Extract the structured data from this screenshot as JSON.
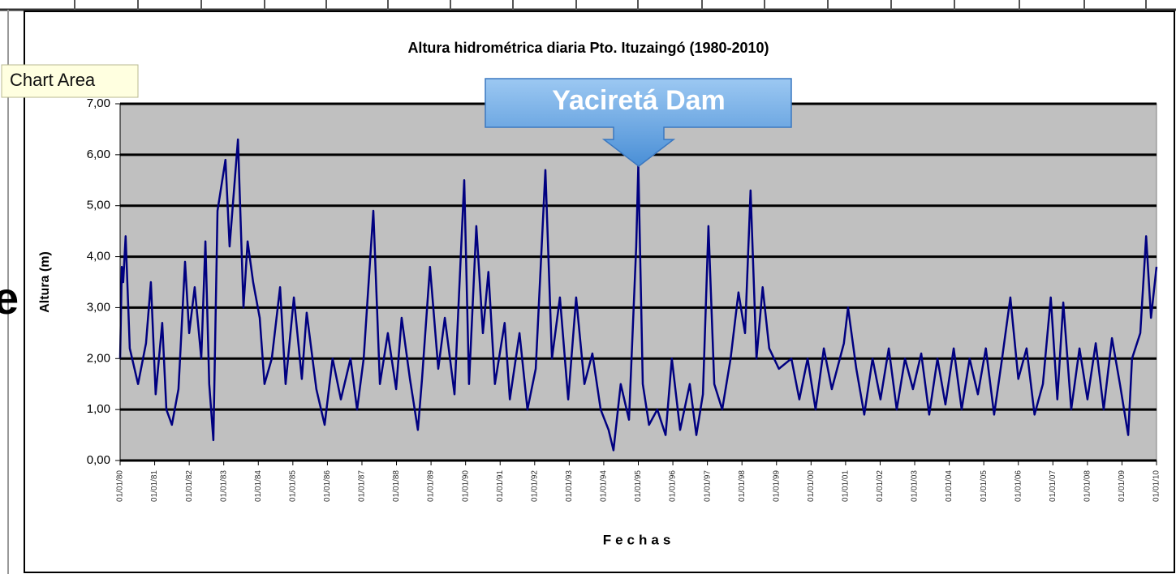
{
  "chart_data": {
    "type": "line",
    "title": "Altura hidrométrica diaria Pto. Ituzaingó (1980-2010)",
    "x_label": "Fechas",
    "y_label": "Altura (m)",
    "annotation": "Yaciretá Dam",
    "tooltip": "Chart Area",
    "background_text": "e",
    "grid": true,
    "plot_background": "#c0c0c0",
    "xlim": [
      1980,
      2010
    ],
    "ylim": [
      0,
      7
    ],
    "yticks": [
      {
        "value": 0,
        "label": "0,00"
      },
      {
        "value": 1,
        "label": "1,00"
      },
      {
        "value": 2,
        "label": "2,00"
      },
      {
        "value": 3,
        "label": "3,00"
      },
      {
        "value": 4,
        "label": "4,00"
      },
      {
        "value": 5,
        "label": "5,00"
      },
      {
        "value": 6,
        "label": "6,00"
      },
      {
        "value": 7,
        "label": "7,00"
      }
    ],
    "xticks": [
      {
        "value": 1980,
        "label": "01/01/80"
      },
      {
        "value": 1981,
        "label": "01/01/81"
      },
      {
        "value": 1982,
        "label": "01/01/82"
      },
      {
        "value": 1983,
        "label": "01/01/83"
      },
      {
        "value": 1984,
        "label": "01/01/84"
      },
      {
        "value": 1985,
        "label": "01/01/85"
      },
      {
        "value": 1986,
        "label": "01/01/86"
      },
      {
        "value": 1987,
        "label": "01/01/87"
      },
      {
        "value": 1988,
        "label": "01/01/88"
      },
      {
        "value": 1989,
        "label": "01/01/89"
      },
      {
        "value": 1990,
        "label": "01/01/90"
      },
      {
        "value": 1991,
        "label": "01/01/91"
      },
      {
        "value": 1992,
        "label": "01/01/92"
      },
      {
        "value": 1993,
        "label": "01/01/93"
      },
      {
        "value": 1994,
        "label": "01/01/94"
      },
      {
        "value": 1995,
        "label": "01/01/95"
      },
      {
        "value": 1996,
        "label": "01/01/96"
      },
      {
        "value": 1997,
        "label": "01/01/97"
      },
      {
        "value": 1998,
        "label": "01/01/98"
      },
      {
        "value": 1999,
        "label": "01/01/99"
      },
      {
        "value": 2000,
        "label": "01/01/00"
      },
      {
        "value": 2001,
        "label": "01/01/01"
      },
      {
        "value": 2002,
        "label": "01/01/02"
      },
      {
        "value": 2003,
        "label": "01/01/03"
      },
      {
        "value": 2004,
        "label": "01/01/04"
      },
      {
        "value": 2005,
        "label": "01/01/05"
      },
      {
        "value": 2006,
        "label": "01/01/06"
      },
      {
        "value": 2007,
        "label": "01/01/07"
      },
      {
        "value": 2008,
        "label": "01/01/08"
      },
      {
        "value": 2009,
        "label": "01/01/09"
      },
      {
        "value": 2010,
        "label": "01/01/10"
      }
    ],
    "series": [
      {
        "color": "#000080",
        "x": [
          1980.0,
          1980.05,
          1980.09,
          1980.16,
          1980.28,
          1980.52,
          1980.75,
          1980.89,
          1981.03,
          1981.22,
          1981.34,
          1981.5,
          1981.69,
          1981.88,
          1982.0,
          1982.16,
          1982.35,
          1982.47,
          1982.58,
          1982.7,
          1982.82,
          1983.05,
          1983.17,
          1983.41,
          1983.57,
          1983.69,
          1983.85,
          1984.04,
          1984.18,
          1984.39,
          1984.63,
          1984.79,
          1985.03,
          1985.26,
          1985.4,
          1985.68,
          1985.92,
          1986.15,
          1986.39,
          1986.67,
          1986.86,
          1987.05,
          1987.33,
          1987.52,
          1987.75,
          1987.99,
          1988.15,
          1988.39,
          1988.62,
          1988.74,
          1988.97,
          1989.21,
          1989.4,
          1989.68,
          1989.96,
          1990.1,
          1990.31,
          1990.5,
          1990.66,
          1990.85,
          1991.13,
          1991.28,
          1991.56,
          1991.79,
          1992.03,
          1992.31,
          1992.5,
          1992.73,
          1992.97,
          1993.2,
          1993.44,
          1993.67,
          1993.91,
          1994.14,
          1994.28,
          1994.49,
          1994.73,
          1994.94,
          1995.0,
          1995.13,
          1995.31,
          1995.55,
          1995.79,
          1995.97,
          1996.21,
          1996.49,
          1996.68,
          1996.87,
          1997.03,
          1997.2,
          1997.43,
          1997.67,
          1997.9,
          1998.09,
          1998.25,
          1998.42,
          1998.6,
          1998.79,
          1999.07,
          1999.43,
          1999.66,
          1999.9,
          2000.13,
          2000.37,
          2000.6,
          2000.95,
          2001.07,
          2001.31,
          2001.54,
          2001.78,
          2002.01,
          2002.25,
          2002.48,
          2002.72,
          2002.95,
          2003.19,
          2003.42,
          2003.66,
          2003.89,
          2004.13,
          2004.36,
          2004.59,
          2004.83,
          2005.06,
          2005.3,
          2005.53,
          2005.77,
          2006.0,
          2006.24,
          2006.47,
          2006.71,
          2006.94,
          2007.13,
          2007.3,
          2007.53,
          2007.77,
          2008.0,
          2008.24,
          2008.47,
          2008.71,
          2008.94,
          2009.18,
          2009.29,
          2009.53,
          2009.7,
          2009.84,
          2010.0
        ],
        "values": [
          2.0,
          3.8,
          3.5,
          4.4,
          2.2,
          1.5,
          2.3,
          3.5,
          1.3,
          2.7,
          1.0,
          0.7,
          1.4,
          3.9,
          2.5,
          3.4,
          2.0,
          4.3,
          1.5,
          0.4,
          4.9,
          5.9,
          4.2,
          6.3,
          3.0,
          4.3,
          3.5,
          2.8,
          1.5,
          2.0,
          3.4,
          1.5,
          3.2,
          1.6,
          2.9,
          1.4,
          0.7,
          2.0,
          1.2,
          2.0,
          1.0,
          2.0,
          4.9,
          1.5,
          2.5,
          1.4,
          2.8,
          1.6,
          0.6,
          1.6,
          3.8,
          1.8,
          2.8,
          1.3,
          5.5,
          1.5,
          4.6,
          2.5,
          3.7,
          1.5,
          2.7,
          1.2,
          2.5,
          1.0,
          1.8,
          5.7,
          2.0,
          3.2,
          1.2,
          3.2,
          1.5,
          2.1,
          1.0,
          0.6,
          0.2,
          1.5,
          0.8,
          4.2,
          5.8,
          1.5,
          0.7,
          1.0,
          0.5,
          2.0,
          0.6,
          1.5,
          0.5,
          1.3,
          4.6,
          1.5,
          1.0,
          2.0,
          3.3,
          2.5,
          5.3,
          2.0,
          3.4,
          2.2,
          1.8,
          2.0,
          1.2,
          2.0,
          1.0,
          2.2,
          1.4,
          2.3,
          3.0,
          1.8,
          0.9,
          2.0,
          1.2,
          2.2,
          1.0,
          2.0,
          1.4,
          2.1,
          0.9,
          2.0,
          1.1,
          2.2,
          1.0,
          2.0,
          1.3,
          2.2,
          0.9,
          2.0,
          3.2,
          1.6,
          2.2,
          0.9,
          1.5,
          3.2,
          1.2,
          3.1,
          1.0,
          2.2,
          1.2,
          2.3,
          1.0,
          2.4,
          1.5,
          0.5,
          2.0,
          2.5,
          4.4,
          2.8,
          3.8
        ]
      }
    ]
  }
}
